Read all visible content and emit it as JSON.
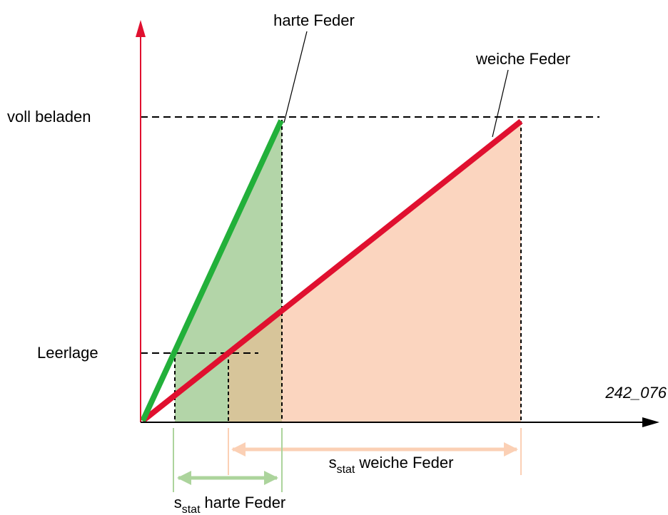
{
  "labels": {
    "hard_spring": "harte Feder",
    "soft_spring": "weiche Feder",
    "full_load": "voll beladen",
    "empty_load": "Leerlage",
    "figure_id": "242_076"
  },
  "dimensions": [
    {
      "symbol": "s",
      "subscript": "stat",
      "label": "weiche Feder"
    },
    {
      "symbol": "s",
      "subscript": "stat",
      "label": "harte Feder"
    }
  ]
}
